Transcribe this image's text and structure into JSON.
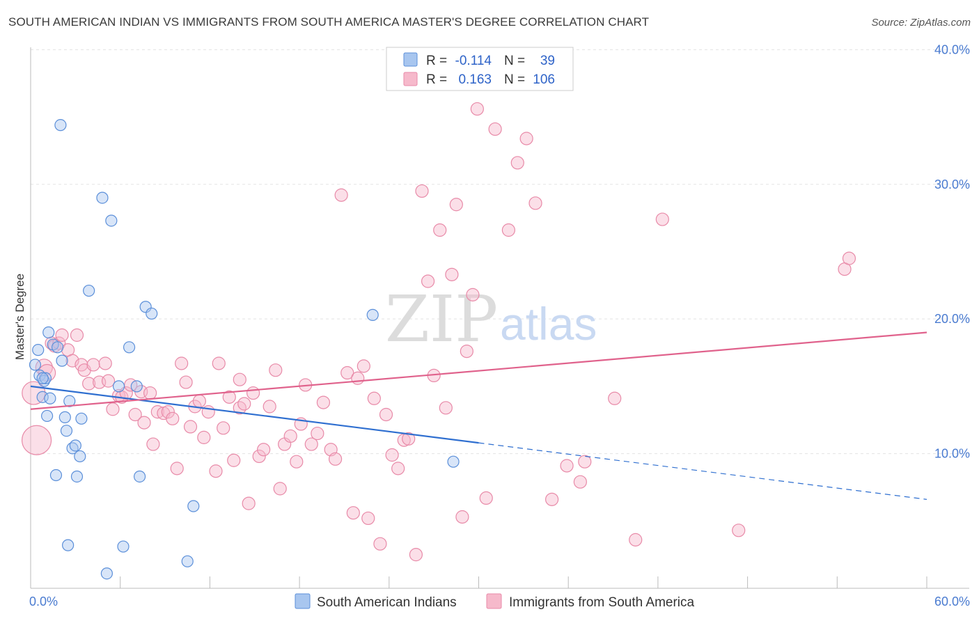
{
  "title": "SOUTH AMERICAN INDIAN VS IMMIGRANTS FROM SOUTH AMERICA MASTER'S DEGREE CORRELATION CHART",
  "source": "Source: ZipAtlas.com",
  "watermark": {
    "zip": "ZIP",
    "atlas": "atlas"
  },
  "colors": {
    "blue_fill": "#a8c6ef",
    "blue_stroke": "#5b8fd9",
    "blue_line": "#2f6fd0",
    "pink_fill": "#f6b9cb",
    "pink_stroke": "#e88aa8",
    "pink_line": "#e0628c",
    "grid": "#e3e3e3",
    "tick_text": "#4a7bd0"
  },
  "legend": {
    "rows": [
      {
        "r_label": "R =",
        "r_value": "-0.114",
        "n_label": "N =",
        "n_value": "39"
      },
      {
        "r_label": "R =",
        "r_value": "0.163",
        "n_label": "N =",
        "n_value": "106"
      }
    ]
  },
  "chart_data": {
    "type": "scatter",
    "title": "SOUTH AMERICAN INDIAN VS IMMIGRANTS FROM SOUTH AMERICA MASTER'S DEGREE CORRELATION CHART",
    "xlabel": "",
    "ylabel": "Master's Degree",
    "xlim": [
      0,
      60
    ],
    "ylim": [
      0,
      41
    ],
    "x_tick_labels": [
      {
        "value": 0,
        "label": "0.0%"
      },
      {
        "value": 60,
        "label": "60.0%"
      }
    ],
    "y_tick_labels": [
      {
        "value": 10,
        "label": "10.0%"
      },
      {
        "value": 20,
        "label": "20.0%"
      },
      {
        "value": 30,
        "label": "30.0%"
      },
      {
        "value": 40,
        "label": "40.0%"
      }
    ],
    "x_minor_ticks": [
      6,
      12,
      18,
      24,
      30,
      36,
      42,
      48,
      54,
      60
    ],
    "y_gridlines": [
      10,
      20,
      30,
      40
    ],
    "series": [
      {
        "name": "South American Indians",
        "color_key": "blue",
        "points": [
          [
            0.3,
            16.6
          ],
          [
            0.5,
            17.7
          ],
          [
            0.6,
            15.8
          ],
          [
            0.8,
            14.2
          ],
          [
            0.9,
            15.4
          ],
          [
            1.0,
            15.6
          ],
          [
            1.1,
            12.8
          ],
          [
            1.2,
            19.0
          ],
          [
            1.3,
            14.1
          ],
          [
            1.5,
            18.1
          ],
          [
            1.7,
            8.4
          ],
          [
            1.8,
            17.9
          ],
          [
            2.0,
            34.4
          ],
          [
            2.1,
            16.9
          ],
          [
            2.3,
            12.7
          ],
          [
            2.4,
            11.7
          ],
          [
            2.5,
            3.2
          ],
          [
            2.6,
            13.9
          ],
          [
            2.8,
            10.4
          ],
          [
            3.0,
            10.6
          ],
          [
            3.1,
            8.3
          ],
          [
            3.3,
            9.8
          ],
          [
            3.4,
            12.6
          ],
          [
            3.9,
            22.1
          ],
          [
            4.8,
            29.0
          ],
          [
            5.1,
            1.1
          ],
          [
            5.4,
            27.3
          ],
          [
            5.9,
            15.0
          ],
          [
            6.2,
            3.1
          ],
          [
            6.6,
            17.9
          ],
          [
            7.1,
            15.0
          ],
          [
            7.3,
            8.3
          ],
          [
            7.7,
            20.9
          ],
          [
            8.1,
            20.4
          ],
          [
            10.5,
            2.0
          ],
          [
            10.9,
            6.1
          ],
          [
            22.9,
            20.3
          ],
          [
            28.3,
            9.4
          ],
          [
            0.8,
            15.6
          ]
        ],
        "sizes": [
          5,
          5,
          5,
          5,
          5,
          5,
          5,
          5,
          5,
          5,
          5,
          5,
          5,
          5,
          5,
          5,
          5,
          5,
          5,
          5,
          5,
          5,
          5,
          5,
          5,
          5,
          5,
          5,
          5,
          5,
          5,
          5,
          5,
          5,
          5,
          5,
          5,
          5,
          5
        ],
        "trend": {
          "x0": 0,
          "y0": 15.0,
          "x1": 30,
          "y1": 10.8,
          "dashed_to_x": 60,
          "dashed_to_y": 6.6
        }
      },
      {
        "name": "Immigrants from South America",
        "color_key": "pink",
        "points": [
          [
            0.2,
            14.5
          ],
          [
            0.4,
            11.0
          ],
          [
            0.9,
            16.4
          ],
          [
            1.1,
            16.0
          ],
          [
            1.4,
            18.2
          ],
          [
            1.6,
            18.0
          ],
          [
            1.9,
            18.2
          ],
          [
            2.1,
            18.8
          ],
          [
            2.5,
            17.7
          ],
          [
            2.8,
            16.9
          ],
          [
            3.1,
            18.8
          ],
          [
            3.4,
            16.6
          ],
          [
            3.6,
            16.2
          ],
          [
            3.9,
            15.2
          ],
          [
            4.2,
            16.6
          ],
          [
            4.6,
            15.3
          ],
          [
            5.0,
            16.7
          ],
          [
            5.2,
            15.4
          ],
          [
            5.5,
            13.3
          ],
          [
            5.9,
            14.3
          ],
          [
            6.1,
            14.2
          ],
          [
            6.4,
            14.5
          ],
          [
            6.7,
            15.1
          ],
          [
            7.0,
            12.9
          ],
          [
            7.4,
            14.6
          ],
          [
            7.6,
            12.3
          ],
          [
            8.0,
            14.5
          ],
          [
            8.2,
            10.7
          ],
          [
            8.5,
            13.1
          ],
          [
            8.9,
            13.0
          ],
          [
            9.2,
            13.1
          ],
          [
            9.5,
            12.6
          ],
          [
            9.8,
            8.9
          ],
          [
            10.1,
            16.7
          ],
          [
            10.4,
            15.3
          ],
          [
            10.7,
            12.0
          ],
          [
            11.0,
            13.5
          ],
          [
            11.3,
            13.9
          ],
          [
            11.6,
            11.2
          ],
          [
            11.9,
            13.1
          ],
          [
            12.4,
            8.7
          ],
          [
            12.6,
            16.7
          ],
          [
            12.9,
            11.9
          ],
          [
            13.3,
            14.2
          ],
          [
            13.6,
            9.5
          ],
          [
            14.0,
            13.4
          ],
          [
            14.3,
            13.7
          ],
          [
            14.6,
            6.3
          ],
          [
            14.9,
            14.5
          ],
          [
            15.3,
            9.8
          ],
          [
            15.6,
            10.3
          ],
          [
            16.0,
            13.5
          ],
          [
            16.4,
            16.2
          ],
          [
            16.7,
            7.4
          ],
          [
            17.0,
            10.7
          ],
          [
            17.4,
            11.3
          ],
          [
            17.8,
            9.4
          ],
          [
            18.1,
            12.2
          ],
          [
            18.4,
            15.1
          ],
          [
            18.8,
            10.7
          ],
          [
            19.2,
            11.5
          ],
          [
            19.6,
            13.8
          ],
          [
            20.1,
            10.3
          ],
          [
            20.4,
            9.6
          ],
          [
            20.8,
            29.2
          ],
          [
            21.2,
            16.0
          ],
          [
            21.6,
            5.6
          ],
          [
            21.9,
            15.6
          ],
          [
            22.3,
            16.5
          ],
          [
            22.6,
            5.2
          ],
          [
            23.0,
            14.1
          ],
          [
            23.4,
            3.3
          ],
          [
            23.8,
            12.9
          ],
          [
            24.2,
            9.9
          ],
          [
            24.6,
            8.9
          ],
          [
            25.0,
            11.0
          ],
          [
            25.3,
            11.1
          ],
          [
            25.8,
            2.5
          ],
          [
            26.2,
            29.5
          ],
          [
            26.6,
            22.8
          ],
          [
            27.0,
            15.8
          ],
          [
            27.4,
            26.6
          ],
          [
            27.8,
            13.4
          ],
          [
            28.2,
            23.3
          ],
          [
            28.5,
            28.5
          ],
          [
            28.9,
            5.3
          ],
          [
            29.2,
            17.6
          ],
          [
            29.6,
            21.8
          ],
          [
            29.9,
            35.6
          ],
          [
            30.5,
            6.7
          ],
          [
            31.1,
            34.1
          ],
          [
            32.0,
            26.6
          ],
          [
            32.6,
            31.6
          ],
          [
            33.2,
            33.4
          ],
          [
            33.8,
            28.6
          ],
          [
            34.9,
            6.6
          ],
          [
            35.9,
            9.1
          ],
          [
            36.8,
            7.9
          ],
          [
            37.1,
            9.4
          ],
          [
            40.5,
            3.6
          ],
          [
            42.3,
            27.4
          ],
          [
            47.4,
            4.3
          ],
          [
            54.5,
            23.7
          ],
          [
            54.8,
            24.5
          ],
          [
            39.1,
            14.1
          ],
          [
            14.0,
            15.5
          ]
        ],
        "sizes": [
          11,
          14,
          8,
          8,
          6,
          6,
          6,
          6,
          6,
          6,
          6,
          6,
          6,
          6,
          6,
          6,
          6,
          6,
          6,
          6,
          6,
          6,
          6,
          6,
          6,
          6,
          6,
          6,
          6,
          6,
          6,
          6,
          6,
          6,
          6,
          6,
          6,
          6,
          6,
          6,
          6,
          6,
          6,
          6,
          6,
          6,
          6,
          6,
          6,
          6,
          6,
          6,
          6,
          6,
          6,
          6,
          6,
          6,
          6,
          6,
          6,
          6,
          6,
          6,
          6,
          6,
          6,
          6,
          6,
          6,
          6,
          6,
          6,
          6,
          6,
          6,
          6,
          6,
          6,
          6,
          6,
          6,
          6,
          6,
          6,
          6,
          6,
          6,
          6,
          6,
          6,
          6,
          6,
          6,
          6,
          6,
          6,
          6,
          6,
          6,
          6,
          6,
          6,
          6,
          6,
          6
        ],
        "trend": {
          "x0": 0,
          "y0": 13.3,
          "x1": 60,
          "y1": 19.0
        }
      }
    ]
  }
}
